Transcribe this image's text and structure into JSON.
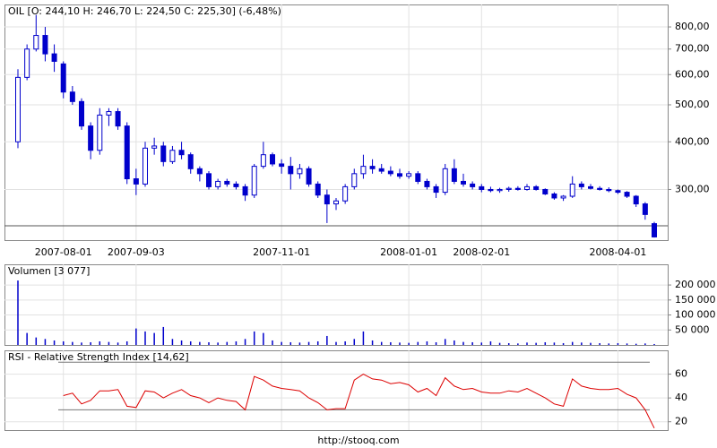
{
  "chart_data": [
    {
      "type": "candlestick",
      "title": "OIL [O: 244,10 H: 246,70 L: 224,50 C: 225,30] (-6,48%)",
      "categories": [
        null,
        null,
        null,
        null,
        null,
        "2007-08-01",
        null,
        null,
        null,
        null,
        null,
        null,
        null,
        "2007-09-03",
        null,
        null,
        null,
        null,
        null,
        null,
        null,
        null,
        null,
        null,
        null,
        null,
        null,
        null,
        null,
        "2007-11-01",
        null,
        null,
        null,
        null,
        null,
        null,
        null,
        null,
        null,
        null,
        null,
        null,
        null,
        "2008-01-01",
        null,
        null,
        null,
        null,
        null,
        null,
        null,
        "2008-02-01",
        null,
        null,
        null,
        null,
        null,
        null,
        null,
        null,
        null,
        null,
        null,
        null,
        null,
        null,
        "2008-04-01",
        null,
        null,
        null,
        null
      ],
      "open": [
        400,
        590,
        700,
        760,
        680,
        640,
        540,
        510,
        440,
        380,
        470,
        480,
        440,
        320,
        310,
        385,
        390,
        355,
        380,
        370,
        340,
        330,
        305,
        315,
        310,
        305,
        290,
        345,
        370,
        350,
        345,
        330,
        340,
        310,
        290,
        275,
        280,
        305,
        330,
        345,
        340,
        335,
        330,
        325,
        330,
        315,
        305,
        295,
        340,
        315,
        310,
        305,
        300,
        298,
        300,
        302,
        300,
        305,
        300,
        292,
        285,
        288,
        310,
        305,
        302,
        300,
        298,
        295,
        288,
        275,
        244.1
      ],
      "high": [
        620,
        720,
        860,
        800,
        720,
        650,
        560,
        520,
        450,
        490,
        490,
        490,
        450,
        340,
        400,
        410,
        400,
        390,
        400,
        375,
        345,
        335,
        320,
        320,
        315,
        310,
        350,
        400,
        375,
        360,
        365,
        350,
        345,
        315,
        300,
        285,
        310,
        340,
        370,
        360,
        350,
        345,
        340,
        335,
        335,
        320,
        310,
        350,
        360,
        330,
        315,
        310,
        305,
        303,
        305,
        306,
        310,
        308,
        302,
        295,
        290,
        325,
        315,
        310,
        306,
        304,
        300,
        297,
        290,
        278,
        246.7
      ],
      "low": [
        385,
        580,
        690,
        650,
        610,
        520,
        500,
        430,
        360,
        370,
        440,
        430,
        310,
        290,
        305,
        370,
        345,
        350,
        360,
        330,
        315,
        300,
        300,
        305,
        300,
        280,
        285,
        340,
        345,
        330,
        300,
        320,
        305,
        285,
        245,
        265,
        275,
        300,
        320,
        330,
        330,
        325,
        320,
        320,
        310,
        300,
        285,
        290,
        310,
        305,
        300,
        295,
        295,
        294,
        296,
        298,
        298,
        298,
        290,
        282,
        280,
        285,
        300,
        300,
        298,
        295,
        292,
        285,
        270,
        250,
        224.5
      ],
      "close": [
        590,
        700,
        760,
        680,
        650,
        540,
        510,
        440,
        380,
        470,
        480,
        440,
        320,
        310,
        385,
        390,
        355,
        380,
        370,
        340,
        330,
        305,
        315,
        310,
        305,
        290,
        345,
        370,
        350,
        345,
        330,
        340,
        310,
        290,
        275,
        280,
        305,
        330,
        345,
        340,
        335,
        330,
        325,
        330,
        315,
        305,
        295,
        340,
        315,
        310,
        305,
        300,
        298,
        300,
        302,
        300,
        305,
        300,
        292,
        285,
        288,
        310,
        305,
        302,
        300,
        298,
        295,
        288,
        275,
        258,
        225.3
      ],
      "color": "#0000cc",
      "log_scale": true,
      "grid": true,
      "reference_line": 240.9,
      "ylim": [
        221,
        916
      ],
      "yticks": [
        {
          "value": 300,
          "label": "300,00"
        },
        {
          "value": 400,
          "label": "400,00"
        },
        {
          "value": 500,
          "label": "500,00"
        },
        {
          "value": 600,
          "label": "600,00"
        },
        {
          "value": 700,
          "label": "700,00"
        },
        {
          "value": 800,
          "label": "800,00"
        }
      ]
    },
    {
      "type": "bar",
      "title": "Volumen [3 077]",
      "color": "#0000cc",
      "grid": true,
      "values": [
        215000,
        40000,
        25000,
        20000,
        15000,
        12000,
        10000,
        8000,
        9000,
        12000,
        10000,
        8000,
        12000,
        55000,
        45000,
        40000,
        60000,
        20000,
        15000,
        12000,
        10000,
        9000,
        8000,
        10000,
        12000,
        20000,
        45000,
        40000,
        15000,
        10000,
        9000,
        8000,
        10000,
        12000,
        30000,
        10000,
        12000,
        20000,
        45000,
        15000,
        10000,
        9000,
        8000,
        7000,
        10000,
        12000,
        9000,
        20000,
        15000,
        10000,
        9000,
        8000,
        12000,
        7000,
        6000,
        5000,
        8000,
        7000,
        9000,
        8000,
        6000,
        10000,
        8000,
        7000,
        6000,
        5000,
        6000,
        5000,
        4000,
        5000,
        3077
      ],
      "ylim": [
        0,
        269000
      ],
      "yticks": [
        {
          "value": 50000,
          "label": "50 000"
        },
        {
          "value": 100000,
          "label": "100 000"
        },
        {
          "value": 150000,
          "label": "150 000"
        },
        {
          "value": 200000,
          "label": "200 000"
        }
      ]
    },
    {
      "type": "line",
      "title": "RSI - Relative Strength Index [14,62]",
      "color": "#dd0000",
      "grid": true,
      "values": [
        null,
        null,
        null,
        null,
        null,
        42,
        44,
        35,
        38,
        46,
        46,
        47,
        33,
        32,
        46,
        45,
        40,
        44,
        47,
        42,
        40,
        36,
        40,
        38,
        37,
        30,
        58,
        55,
        50,
        48,
        47,
        46,
        40,
        36,
        30,
        31,
        31,
        55,
        60,
        56,
        55,
        52,
        53,
        51,
        45,
        48,
        42,
        57,
        50,
        47,
        48,
        45,
        44,
        44,
        46,
        45,
        48,
        44,
        40,
        35,
        33,
        56,
        50,
        48,
        47,
        47,
        48,
        43,
        40,
        30,
        14.62
      ],
      "reference_lines": [
        70,
        30
      ],
      "ylim": [
        13,
        80
      ],
      "yticks": [
        20,
        40,
        60
      ]
    }
  ],
  "footer": "http://stooq.com"
}
